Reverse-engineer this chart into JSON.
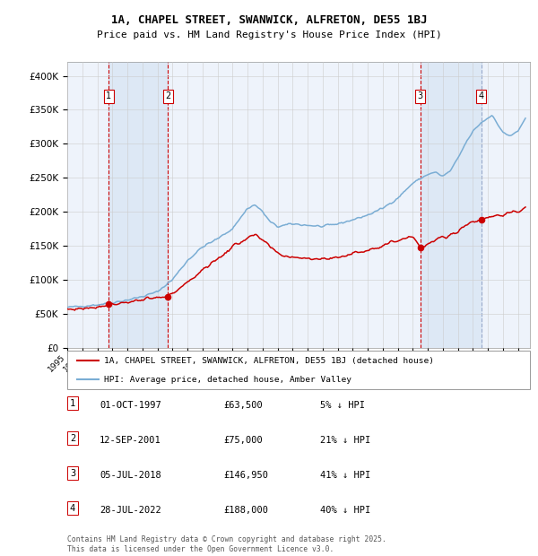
{
  "title_line1": "1A, CHAPEL STREET, SWANWICK, ALFRETON, DE55 1BJ",
  "title_line2": "Price paid vs. HM Land Registry's House Price Index (HPI)",
  "background_color": "#ffffff",
  "plot_bg_color": "#eef3fb",
  "grid_color": "#cccccc",
  "hpi_line_color": "#7aadd4",
  "price_line_color": "#cc0000",
  "vline_red_color": "#cc0000",
  "vline_blue_color": "#99aacc",
  "shade_color": "#dde8f5",
  "sale_events": [
    {
      "label": "1",
      "date_num": 1997.75,
      "price": 63500
    },
    {
      "label": "2",
      "date_num": 2001.7,
      "price": 75000
    },
    {
      "label": "3",
      "date_num": 2018.5,
      "price": 146950
    },
    {
      "label": "4",
      "date_num": 2022.57,
      "price": 188000
    }
  ],
  "legend_entries": [
    "1A, CHAPEL STREET, SWANWICK, ALFRETON, DE55 1BJ (detached house)",
    "HPI: Average price, detached house, Amber Valley"
  ],
  "table_rows": [
    {
      "num": "1",
      "date": "01-OCT-1997",
      "price": "£63,500",
      "change": "5% ↓ HPI"
    },
    {
      "num": "2",
      "date": "12-SEP-2001",
      "price": "£75,000",
      "change": "21% ↓ HPI"
    },
    {
      "num": "3",
      "date": "05-JUL-2018",
      "price": "£146,950",
      "change": "41% ↓ HPI"
    },
    {
      "num": "4",
      "date": "28-JUL-2022",
      "price": "£188,000",
      "change": "40% ↓ HPI"
    }
  ],
  "footer": "Contains HM Land Registry data © Crown copyright and database right 2025.\nThis data is licensed under the Open Government Licence v3.0.",
  "ylim": [
    0,
    420000
  ],
  "yticks": [
    0,
    50000,
    100000,
    150000,
    200000,
    250000,
    300000,
    350000,
    400000
  ],
  "ytick_labels": [
    "£0",
    "£50K",
    "£100K",
    "£150K",
    "£200K",
    "£250K",
    "£300K",
    "£350K",
    "£400K"
  ],
  "xlim_start": 1995.0,
  "xlim_end": 2025.8,
  "hpi_key_times": [
    1995.0,
    1996.0,
    1997.0,
    1998.0,
    1999.0,
    2000.0,
    2001.0,
    2002.0,
    2003.0,
    2004.0,
    2005.0,
    2006.0,
    2007.0,
    2007.5,
    2008.0,
    2008.5,
    2009.0,
    2009.5,
    2010.0,
    2011.0,
    2012.0,
    2013.0,
    2014.0,
    2015.0,
    2016.0,
    2017.0,
    2018.0,
    2019.0,
    2019.5,
    2020.0,
    2020.5,
    2021.0,
    2021.5,
    2022.0,
    2022.5,
    2023.0,
    2023.3,
    2023.7,
    2024.0,
    2024.5,
    2025.0,
    2025.5
  ],
  "hpi_key_vals": [
    59000,
    61000,
    63000,
    66000,
    70000,
    75000,
    82000,
    100000,
    128000,
    148000,
    160000,
    175000,
    205000,
    210000,
    200000,
    185000,
    178000,
    180000,
    182000,
    180000,
    178000,
    182000,
    188000,
    195000,
    205000,
    220000,
    242000,
    255000,
    258000,
    252000,
    260000,
    278000,
    300000,
    318000,
    330000,
    338000,
    342000,
    328000,
    316000,
    312000,
    318000,
    338000
  ],
  "pp_key_times": [
    1995.0,
    1996.0,
    1997.0,
    1997.75,
    1998.5,
    1999.0,
    2000.0,
    2001.0,
    2001.7,
    2002.0,
    2002.5,
    2003.0,
    2004.0,
    2005.0,
    2006.0,
    2007.0,
    2007.5,
    2008.0,
    2008.5,
    2009.0,
    2009.5,
    2010.0,
    2011.0,
    2012.0,
    2013.0,
    2014.0,
    2015.0,
    2016.0,
    2017.0,
    2018.0,
    2018.5,
    2018.8,
    2019.0,
    2019.5,
    2020.0,
    2020.5,
    2021.0,
    2021.5,
    2022.0,
    2022.57,
    2023.0,
    2023.5,
    2024.0,
    2024.5,
    2025.0,
    2025.5
  ],
  "pp_key_vals": [
    56000,
    57500,
    60000,
    63500,
    65000,
    67000,
    70000,
    73000,
    75000,
    80000,
    88000,
    95000,
    115000,
    130000,
    148000,
    162000,
    165000,
    158000,
    148000,
    138000,
    135000,
    133000,
    132000,
    130000,
    133000,
    138000,
    144000,
    150000,
    158000,
    165000,
    148000,
    148000,
    152000,
    158000,
    162000,
    165000,
    172000,
    180000,
    185000,
    188000,
    192000,
    195000,
    195000,
    198000,
    200000,
    205000
  ]
}
